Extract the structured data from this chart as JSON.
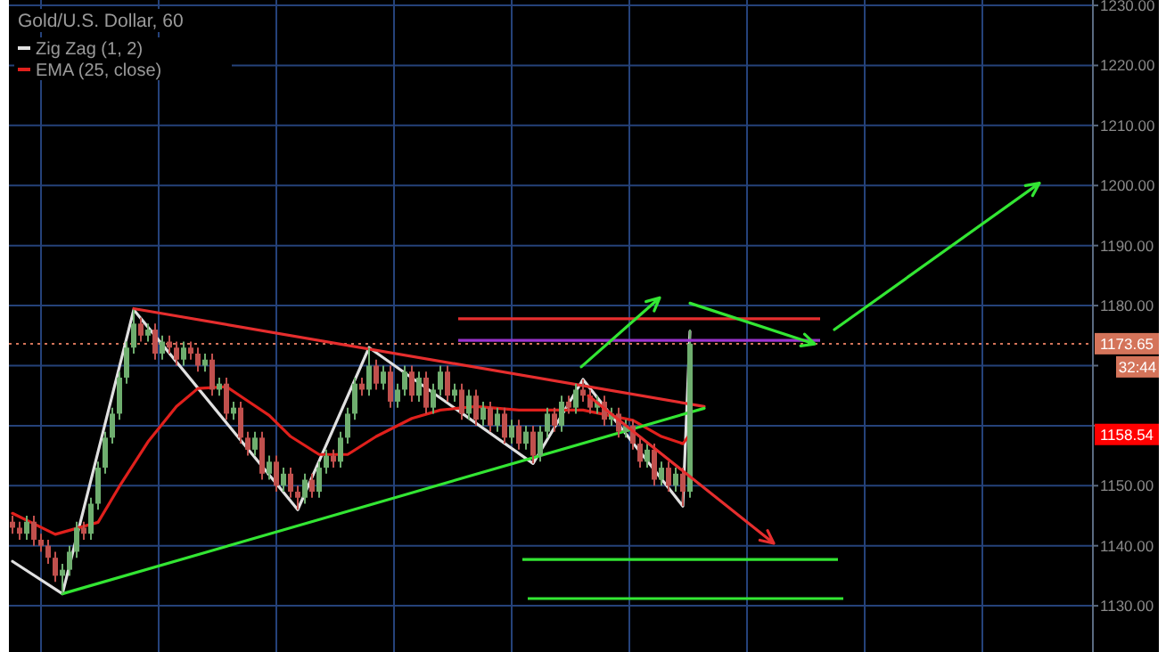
{
  "chart_data": [
    {
      "type": "candlestick",
      "title": "Gold/U.S. Dollar, 60",
      "categories": [
        null,
        null,
        null,
        null,
        null,
        null,
        null,
        null,
        null,
        null,
        null,
        null,
        null,
        null,
        null,
        null,
        null,
        null,
        null,
        null,
        null,
        null,
        null,
        null,
        null,
        null,
        null,
        null,
        null,
        null,
        null,
        null,
        null,
        null,
        null,
        null,
        null,
        null,
        null,
        null,
        null,
        null,
        null,
        null,
        null,
        null,
        null,
        null,
        null,
        null,
        null,
        null,
        null,
        null,
        null,
        null,
        null,
        null,
        null,
        null,
        null,
        null,
        null,
        null,
        null,
        null,
        null,
        null,
        null,
        null,
        null,
        null,
        null,
        null,
        null,
        null,
        null,
        null,
        null,
        null,
        null,
        null,
        null,
        null,
        null,
        null,
        null,
        null,
        null,
        null,
        null,
        null,
        null,
        null,
        null,
        null,
        null,
        null,
        null,
        null,
        null,
        null,
        null,
        null,
        null,
        null,
        null,
        null,
        null,
        null,
        null,
        null,
        null,
        null,
        null,
        null,
        null,
        null,
        null,
        null,
        null,
        null,
        null,
        null,
        null,
        null,
        null,
        null,
        null,
        null,
        null,
        null,
        null,
        null,
        null,
        null,
        null,
        null,
        null,
        null,
        null,
        null,
        null,
        null,
        null,
        null,
        null,
        null,
        null,
        null,
        null,
        null
      ],
      "ohlc": [
        [
          1144,
          1145,
          1142,
          1143
        ],
        [
          1143,
          1144,
          1141,
          1142
        ],
        [
          1142,
          1145,
          1141,
          1144
        ],
        [
          1144,
          1145,
          1140,
          1141
        ],
        [
          1141,
          1142,
          1139,
          1140
        ],
        [
          1140,
          1141,
          1137,
          1138
        ],
        [
          1138,
          1139,
          1134,
          1135
        ],
        [
          1135,
          1137,
          1132,
          1136
        ],
        [
          1136,
          1140,
          1135,
          1139
        ],
        [
          1139,
          1144,
          1138,
          1143
        ],
        [
          1143,
          1144,
          1141,
          1142
        ],
        [
          1142,
          1148,
          1141,
          1147
        ],
        [
          1147,
          1154,
          1146,
          1153
        ],
        [
          1153,
          1159,
          1152,
          1158
        ],
        [
          1158,
          1163,
          1157,
          1162
        ],
        [
          1162,
          1169,
          1161,
          1168
        ],
        [
          1168,
          1174,
          1167,
          1173
        ],
        [
          1173,
          1179.3,
          1172,
          1177
        ],
        [
          1177,
          1178,
          1174,
          1175
        ],
        [
          1175,
          1177,
          1174,
          1176
        ],
        [
          1176,
          1177,
          1171,
          1172
        ],
        [
          1172,
          1175,
          1171,
          1174
        ],
        [
          1174,
          1175,
          1172,
          1173
        ],
        [
          1173,
          1174,
          1170,
          1171
        ],
        [
          1171,
          1174,
          1170,
          1173
        ],
        [
          1173,
          1174,
          1171,
          1172
        ],
        [
          1172,
          1173,
          1169,
          1170
        ],
        [
          1170,
          1172,
          1169,
          1171
        ],
        [
          1171,
          1172,
          1165,
          1166
        ],
        [
          1166,
          1168,
          1165,
          1167
        ],
        [
          1167,
          1168,
          1161,
          1162
        ],
        [
          1162,
          1164,
          1161,
          1163
        ],
        [
          1163,
          1164,
          1157,
          1158
        ],
        [
          1158,
          1159,
          1155,
          1156
        ],
        [
          1156,
          1159,
          1155,
          1158
        ],
        [
          1158,
          1159,
          1151,
          1152
        ],
        [
          1152,
          1155,
          1151,
          1154
        ],
        [
          1154,
          1155,
          1149,
          1150
        ],
        [
          1150,
          1153,
          1149,
          1152
        ],
        [
          1152,
          1153,
          1148,
          1149
        ],
        [
          1149,
          1150,
          1146,
          1148
        ],
        [
          1148,
          1152,
          1147,
          1151
        ],
        [
          1151,
          1152,
          1148,
          1149
        ],
        [
          1149,
          1154,
          1148,
          1153
        ],
        [
          1153,
          1156,
          1152,
          1155
        ],
        [
          1155,
          1156,
          1153,
          1154
        ],
        [
          1154,
          1159,
          1153,
          1158
        ],
        [
          1158,
          1163,
          1157,
          1162
        ],
        [
          1162,
          1168,
          1161,
          1167
        ],
        [
          1167,
          1168,
          1165,
          1166
        ],
        [
          1166,
          1173,
          1165,
          1170
        ],
        [
          1170,
          1171,
          1166,
          1167
        ],
        [
          1167,
          1170,
          1166,
          1169
        ],
        [
          1169,
          1170,
          1163,
          1164
        ],
        [
          1164,
          1167,
          1163,
          1166
        ],
        [
          1166,
          1170,
          1165,
          1169
        ],
        [
          1169,
          1170,
          1164,
          1165
        ],
        [
          1165,
          1169,
          1164,
          1168
        ],
        [
          1168,
          1169,
          1162,
          1163
        ],
        [
          1163,
          1167,
          1162,
          1166
        ],
        [
          1166,
          1170,
          1165,
          1169
        ],
        [
          1169,
          1170,
          1164,
          1165
        ],
        [
          1165,
          1167,
          1164,
          1166
        ],
        [
          1166,
          1167,
          1161,
          1162
        ],
        [
          1162,
          1166,
          1161,
          1165
        ],
        [
          1165,
          1166,
          1160,
          1161
        ],
        [
          1161,
          1164,
          1160,
          1163
        ],
        [
          1163,
          1164,
          1159,
          1160
        ],
        [
          1160,
          1163,
          1159,
          1162
        ],
        [
          1162,
          1163,
          1157,
          1158
        ],
        [
          1158,
          1161,
          1157,
          1160
        ],
        [
          1160,
          1161,
          1156,
          1157
        ],
        [
          1157,
          1160,
          1156,
          1159
        ],
        [
          1159,
          1160,
          1153.7,
          1155
        ],
        [
          1155,
          1160,
          1154,
          1159
        ],
        [
          1159,
          1163,
          1158,
          1162
        ],
        [
          1162,
          1163,
          1159,
          1160
        ],
        [
          1160,
          1165,
          1159,
          1164
        ],
        [
          1164,
          1165,
          1162,
          1163
        ],
        [
          1163,
          1167,
          1162,
          1166
        ],
        [
          1166,
          1167.7,
          1164,
          1165
        ],
        [
          1165,
          1166,
          1162,
          1163
        ],
        [
          1163,
          1165,
          1162,
          1164
        ],
        [
          1164,
          1165,
          1160,
          1161
        ],
        [
          1161,
          1163,
          1160,
          1162
        ],
        [
          1162,
          1163,
          1158,
          1159
        ],
        [
          1159,
          1161,
          1158,
          1160
        ],
        [
          1160,
          1161,
          1156,
          1157
        ],
        [
          1157,
          1158,
          1153,
          1154
        ],
        [
          1154,
          1157,
          1153,
          1156
        ],
        [
          1156,
          1157,
          1150,
          1151
        ],
        [
          1151,
          1154,
          1150,
          1153
        ],
        [
          1153,
          1154,
          1149,
          1150
        ],
        [
          1150,
          1153,
          1149,
          1152
        ],
        [
          1152,
          1153,
          1146.6,
          1149
        ],
        [
          1149,
          1176,
          1148,
          1173.65
        ],
        null,
        null,
        null,
        null,
        null,
        null,
        null,
        null,
        null,
        null,
        null,
        null,
        null,
        null,
        null,
        null,
        null,
        null,
        null,
        null,
        null,
        null,
        null,
        null,
        null,
        null,
        null,
        null,
        null,
        null,
        null,
        null,
        null,
        null,
        null,
        null,
        null,
        null,
        null,
        null,
        null,
        null,
        null,
        null,
        null,
        null,
        null,
        null,
        null,
        null,
        null,
        null,
        null,
        null,
        null,
        null
      ],
      "ylim": [
        1122.3,
        1230.9
      ],
      "yticks": [
        {
          "value": 1130,
          "label": "1130.00"
        },
        {
          "value": 1150,
          "label": "1150.00"
        },
        {
          "value": 1160,
          "label": null
        },
        {
          "value": 1170,
          "label": null
        },
        {
          "value": 1190,
          "label": "1190.00"
        },
        {
          "value": 1210,
          "label": "1210.00"
        },
        {
          "value": 1230,
          "label": "1230.00"
        }
      ],
      "tick_labels": "y",
      "grid": true,
      "ref_lines": [
        {
          "axis": "y",
          "value": 1173.65,
          "label": "1173.65",
          "color": "#d4745a",
          "line_style": "dotted"
        }
      ],
      "annotations": [
        "32:44",
        {
          "text": "1158.54",
          "y": 1158.54
        }
      ]
    },
    {
      "type": "line",
      "categories": [
        null,
        null,
        null,
        null,
        null,
        null,
        null,
        null,
        null,
        null,
        null,
        null,
        null,
        null,
        null,
        null,
        null,
        null,
        null,
        null,
        null,
        null,
        null,
        null,
        null,
        null,
        null,
        null,
        null,
        null,
        null,
        null,
        null,
        null,
        null,
        null,
        null,
        null,
        null,
        null,
        null,
        null,
        null,
        null,
        null,
        null,
        null,
        null,
        null,
        null,
        null,
        null,
        null,
        null,
        null,
        null,
        null,
        null,
        null,
        null,
        null,
        null,
        null,
        null,
        null,
        null,
        null,
        null,
        null,
        null,
        null,
        null,
        null,
        null,
        null,
        null,
        null,
        null,
        null,
        null,
        null,
        null,
        null,
        null,
        null,
        null,
        null,
        null,
        null,
        null,
        null,
        null,
        null,
        null,
        null,
        null,
        null,
        null,
        null,
        null,
        null,
        null,
        null,
        null,
        null,
        null,
        null,
        null,
        null,
        null,
        null,
        null,
        null,
        null,
        null,
        null,
        null,
        null,
        null,
        null,
        null,
        null,
        null,
        null,
        null,
        null,
        null,
        null,
        null,
        null,
        null,
        null,
        null,
        null,
        null,
        null,
        null,
        null,
        null,
        null,
        null,
        null,
        null,
        null,
        null,
        null,
        null,
        null,
        null,
        null,
        null,
        null
      ],
      "ylim": [
        1122.3,
        1230.9
      ],
      "yticks": [
        {
          "value": 1140,
          "label": "1140.00"
        },
        {
          "value": 1180,
          "label": "1180.00"
        },
        {
          "value": 1200,
          "label": "1200.00"
        },
        {
          "value": 1220,
          "label": "1220.00"
        }
      ],
      "tick_labels": "y",
      "grid": "y",
      "legend": "top left",
      "series": [
        {
          "name": "Zig Zag (1, 2)",
          "color": "#e0e0e0",
          "values": [
            1137.4,
            null,
            null,
            null,
            null,
            null,
            null,
            1132,
            null,
            null,
            null,
            null,
            null,
            null,
            null,
            null,
            null,
            1179.3,
            null,
            null,
            null,
            null,
            null,
            null,
            null,
            null,
            null,
            null,
            null,
            null,
            null,
            null,
            null,
            null,
            null,
            null,
            null,
            null,
            null,
            null,
            1146,
            null,
            null,
            null,
            null,
            null,
            null,
            null,
            null,
            null,
            1173,
            null,
            null,
            null,
            null,
            null,
            null,
            null,
            null,
            null,
            null,
            null,
            null,
            null,
            null,
            null,
            null,
            null,
            null,
            null,
            null,
            null,
            null,
            1153.7,
            null,
            null,
            null,
            null,
            null,
            null,
            1167.7,
            null,
            null,
            null,
            null,
            null,
            null,
            null,
            null,
            null,
            null,
            null,
            null,
            null,
            1146.6,
            1175.7,
            null,
            null,
            null,
            null,
            null,
            null,
            null,
            null,
            null,
            null,
            null,
            null,
            null,
            null,
            null,
            null,
            null,
            null,
            null,
            null,
            null,
            null,
            null,
            null,
            null,
            null,
            null,
            null,
            null,
            null,
            null,
            null,
            null,
            null,
            null,
            null,
            null,
            null,
            null,
            null,
            null,
            null,
            null,
            null,
            null,
            null,
            null,
            null,
            null,
            null,
            null,
            null,
            null,
            null,
            null,
            null
          ]
        },
        {
          "name": "EMA (25, close)",
          "color": "#e0201c",
          "values": [
            1145.4,
            null,
            null,
            null,
            null,
            null,
            1141.9,
            null,
            null,
            null,
            null,
            null,
            1143.9,
            null,
            null,
            1149.9,
            null,
            null,
            null,
            1157.3,
            null,
            null,
            null,
            1163.2,
            null,
            null,
            1166.2,
            null,
            null,
            null,
            1166.5,
            null,
            null,
            1164.1,
            null,
            null,
            1161.7,
            null,
            null,
            1158.2,
            null,
            null,
            null,
            1155.2,
            null,
            null,
            null,
            1155.2,
            null,
            null,
            null,
            1158.2,
            null,
            null,
            null,
            null,
            1161.2,
            null,
            null,
            null,
            1162.6,
            null,
            null,
            null,
            null,
            1163.2,
            null,
            null,
            null,
            null,
            null,
            1162.6,
            null,
            null,
            null,
            null,
            null,
            null,
            null,
            null,
            1162.6,
            null,
            null,
            null,
            null,
            null,
            null,
            1160.9,
            null,
            null,
            null,
            1158.2,
            null,
            null,
            1157,
            1158.54,
            null,
            null,
            null,
            null,
            null,
            null,
            null,
            null,
            null,
            null,
            null,
            null,
            null,
            null,
            null,
            null,
            null,
            null,
            null,
            null,
            null,
            null,
            null,
            null,
            null,
            null,
            null,
            null,
            null,
            null,
            null,
            null,
            null,
            null,
            null,
            null,
            null,
            null,
            null,
            null,
            null,
            null,
            null,
            null,
            null,
            null,
            null,
            null,
            null,
            null,
            null,
            null,
            null,
            null,
            null,
            null
          ]
        },
        {
          "color": "#e62e2e",
          "values": [
            null,
            null,
            null,
            null,
            null,
            null,
            null,
            null,
            null,
            null,
            null,
            null,
            null,
            null,
            null,
            null,
            null,
            1179.5,
            null,
            null,
            null,
            null,
            null,
            null,
            null,
            null,
            null,
            null,
            null,
            null,
            null,
            null,
            null,
            null,
            null,
            null,
            null,
            null,
            null,
            null,
            null,
            null,
            null,
            null,
            null,
            null,
            null,
            null,
            null,
            null,
            null,
            null,
            null,
            null,
            null,
            null,
            null,
            null,
            null,
            null,
            null,
            null,
            null,
            null,
            null,
            null,
            null,
            null,
            null,
            null,
            null,
            null,
            null,
            null,
            null,
            null,
            null,
            null,
            null,
            null,
            null,
            null,
            null,
            null,
            null,
            null,
            null,
            null,
            null,
            null,
            null,
            null,
            null,
            null,
            null,
            null,
            null,
            1163.2,
            null,
            null,
            null,
            null,
            null,
            null,
            null,
            null,
            null,
            null,
            null,
            null,
            null,
            null,
            null,
            null,
            null,
            null,
            null,
            null,
            null,
            null,
            null,
            null,
            null,
            null,
            null,
            null,
            null,
            null,
            null,
            null,
            null,
            null,
            null,
            null,
            null,
            null,
            null,
            null,
            null,
            null,
            null,
            null,
            null,
            null,
            null,
            null,
            null,
            null,
            null,
            null,
            null,
            null
          ]
        },
        {
          "color": "#33e633",
          "values": [
            null,
            null,
            null,
            null,
            null,
            null,
            null,
            1132,
            null,
            null,
            null,
            null,
            null,
            null,
            null,
            null,
            null,
            null,
            null,
            null,
            null,
            null,
            null,
            null,
            null,
            null,
            null,
            null,
            null,
            null,
            null,
            null,
            null,
            null,
            null,
            null,
            null,
            null,
            null,
            null,
            null,
            null,
            null,
            null,
            null,
            null,
            null,
            null,
            null,
            null,
            null,
            null,
            null,
            null,
            null,
            null,
            null,
            null,
            null,
            null,
            null,
            null,
            null,
            null,
            null,
            null,
            null,
            null,
            null,
            null,
            null,
            null,
            null,
            null,
            null,
            null,
            null,
            null,
            null,
            null,
            null,
            null,
            null,
            null,
            null,
            null,
            null,
            null,
            null,
            null,
            null,
            null,
            null,
            null,
            null,
            null,
            null,
            1162.9,
            null,
            null,
            null,
            null,
            null,
            null,
            null,
            null,
            null,
            null,
            null,
            null,
            null,
            null,
            null,
            null,
            null,
            null,
            null,
            null,
            null,
            null,
            null,
            null,
            null,
            null,
            null,
            null,
            null,
            null,
            null,
            null,
            null,
            null,
            null,
            null,
            null,
            null,
            null,
            null,
            null,
            null,
            null,
            null,
            null,
            null,
            null,
            null,
            null,
            null,
            null,
            null,
            null,
            null
          ]
        }
      ]
    }
  ]
}
